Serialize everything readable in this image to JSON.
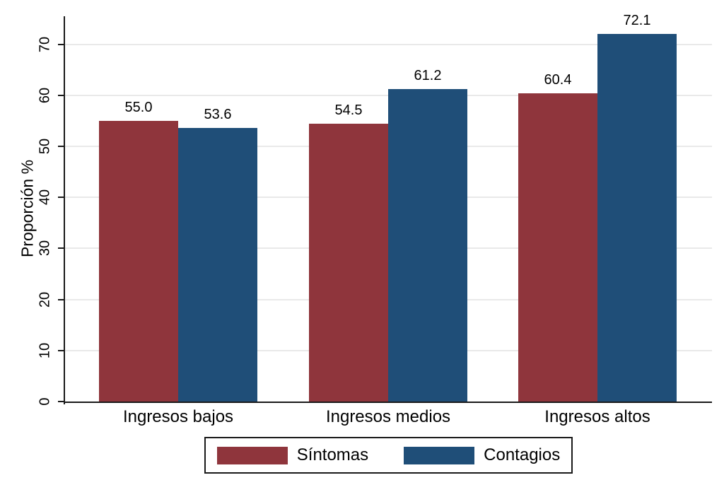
{
  "figure": {
    "background": "#ffffff"
  },
  "chart_data": {
    "type": "bar",
    "title": "",
    "xlabel": "",
    "ylabel": "Proporción %",
    "categories": [
      "Ingresos bajos",
      "Ingresos medios",
      "Ingresos altos"
    ],
    "series": [
      {
        "name": "Síntomas",
        "color": "#8F353C",
        "values": [
          55.0,
          54.5,
          60.4
        ]
      },
      {
        "name": "Contagios",
        "color": "#1F4E78",
        "values": [
          53.6,
          61.2,
          72.1
        ]
      }
    ],
    "value_labels": [
      [
        "55.0",
        "53.6"
      ],
      [
        "54.5",
        "61.2"
      ],
      [
        "60.4",
        "72.1"
      ]
    ],
    "y_ticks": [
      0,
      10,
      20,
      30,
      40,
      50,
      60,
      70
    ],
    "ylim": [
      0,
      75.5
    ],
    "grid": "horizontal",
    "grid_color": "#E9E9E9",
    "axis_color": "#1A1A1A",
    "text_color": "#000000",
    "legend_position": "bottom",
    "legend_border": true
  }
}
